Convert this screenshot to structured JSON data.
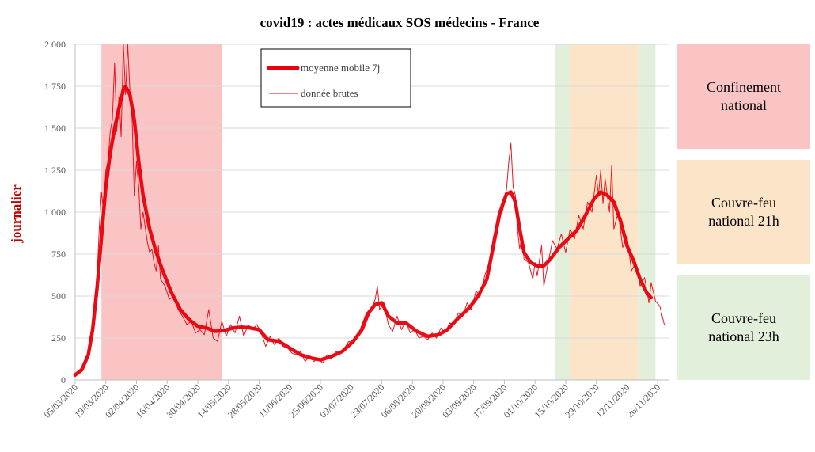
{
  "chart_data": {
    "type": "line",
    "title": "covid19 : actes médicaux SOS médecins - France",
    "ylabel": "journalier",
    "ylim": [
      0,
      2000
    ],
    "xlim": [
      "2020-03-05",
      "2020-12-01"
    ],
    "y_ticks": [
      "0",
      "250",
      "500",
      "750",
      "1 000",
      "1 250",
      "1 500",
      "1 750",
      "2 000"
    ],
    "y_tick_values": [
      0,
      250,
      500,
      750,
      1000,
      1250,
      1500,
      1750,
      2000
    ],
    "x_ticks": [
      "05/03/2020",
      "19/03/2020",
      "02/04/2020",
      "16/04/2020",
      "30/04/2020",
      "14/05/2020",
      "28/05/2020",
      "11/06/2020",
      "25/06/2020",
      "09/07/2020",
      "23/07/2020",
      "06/08/2020",
      "20/08/2020",
      "03/09/2020",
      "17/09/2020",
      "01/10/2020",
      "15/10/2020",
      "29/10/2020",
      "12/11/2020",
      "26/11/2020"
    ],
    "x_tick_dates": [
      "2020-03-05",
      "2020-03-19",
      "2020-04-02",
      "2020-04-16",
      "2020-04-30",
      "2020-05-14",
      "2020-05-28",
      "2020-06-11",
      "2020-06-25",
      "2020-07-09",
      "2020-07-23",
      "2020-08-06",
      "2020-08-20",
      "2020-09-03",
      "2020-09-17",
      "2020-10-01",
      "2020-10-15",
      "2020-10-29",
      "2020-11-12",
      "2020-11-26"
    ],
    "grid": true,
    "legend": {
      "position": "top-center"
    },
    "series": [
      {
        "name": "moyenne mobile 7j",
        "color": "#e8000b",
        "points": [
          [
            "2020-03-05",
            30
          ],
          [
            "2020-03-08",
            60
          ],
          [
            "2020-03-11",
            150
          ],
          [
            "2020-03-13",
            300
          ],
          [
            "2020-03-15",
            550
          ],
          [
            "2020-03-17",
            850
          ],
          [
            "2020-03-19",
            1150
          ],
          [
            "2020-03-21",
            1350
          ],
          [
            "2020-03-23",
            1500
          ],
          [
            "2020-03-25",
            1620
          ],
          [
            "2020-03-27",
            1730
          ],
          [
            "2020-03-28",
            1750
          ],
          [
            "2020-03-30",
            1700
          ],
          [
            "2020-04-01",
            1550
          ],
          [
            "2020-04-03",
            1300
          ],
          [
            "2020-04-05",
            1100
          ],
          [
            "2020-04-08",
            900
          ],
          [
            "2020-04-11",
            760
          ],
          [
            "2020-04-14",
            650
          ],
          [
            "2020-04-18",
            520
          ],
          [
            "2020-04-22",
            420
          ],
          [
            "2020-04-26",
            360
          ],
          [
            "2020-04-30",
            320
          ],
          [
            "2020-05-04",
            310
          ],
          [
            "2020-05-08",
            290
          ],
          [
            "2020-05-12",
            295
          ],
          [
            "2020-05-16",
            310
          ],
          [
            "2020-05-20",
            315
          ],
          [
            "2020-05-24",
            310
          ],
          [
            "2020-05-28",
            300
          ],
          [
            "2020-06-01",
            240
          ],
          [
            "2020-06-06",
            230
          ],
          [
            "2020-06-11",
            190
          ],
          [
            "2020-06-16",
            150
          ],
          [
            "2020-06-21",
            130
          ],
          [
            "2020-06-25",
            120
          ],
          [
            "2020-06-30",
            140
          ],
          [
            "2020-07-05",
            170
          ],
          [
            "2020-07-10",
            230
          ],
          [
            "2020-07-14",
            300
          ],
          [
            "2020-07-17",
            400
          ],
          [
            "2020-07-20",
            450
          ],
          [
            "2020-07-23",
            460
          ],
          [
            "2020-07-26",
            380
          ],
          [
            "2020-07-30",
            340
          ],
          [
            "2020-08-03",
            340
          ],
          [
            "2020-08-08",
            290
          ],
          [
            "2020-08-13",
            260
          ],
          [
            "2020-08-18",
            270
          ],
          [
            "2020-08-22",
            300
          ],
          [
            "2020-08-27",
            370
          ],
          [
            "2020-09-01",
            430
          ],
          [
            "2020-09-05",
            500
          ],
          [
            "2020-09-09",
            600
          ],
          [
            "2020-09-12",
            800
          ],
          [
            "2020-09-15",
            1000
          ],
          [
            "2020-09-18",
            1110
          ],
          [
            "2020-09-20",
            1120
          ],
          [
            "2020-09-22",
            1060
          ],
          [
            "2020-09-24",
            900
          ],
          [
            "2020-09-26",
            760
          ],
          [
            "2020-09-29",
            700
          ],
          [
            "2020-10-02",
            680
          ],
          [
            "2020-10-05",
            680
          ],
          [
            "2020-10-08",
            720
          ],
          [
            "2020-10-12",
            790
          ],
          [
            "2020-10-16",
            840
          ],
          [
            "2020-10-20",
            890
          ],
          [
            "2020-10-24",
            980
          ],
          [
            "2020-10-28",
            1080
          ],
          [
            "2020-10-31",
            1120
          ],
          [
            "2020-11-03",
            1100
          ],
          [
            "2020-11-06",
            1060
          ],
          [
            "2020-11-09",
            950
          ],
          [
            "2020-11-12",
            800
          ],
          [
            "2020-11-15",
            710
          ],
          [
            "2020-11-18",
            600
          ],
          [
            "2020-11-21",
            520
          ],
          [
            "2020-11-23",
            490
          ]
        ]
      },
      {
        "name": "donnée brutes",
        "color": "#e8000b",
        "points": [
          [
            "2020-03-05",
            20
          ],
          [
            "2020-03-07",
            60
          ],
          [
            "2020-03-09",
            90
          ],
          [
            "2020-03-11",
            160
          ],
          [
            "2020-03-13",
            320
          ],
          [
            "2020-03-15",
            620
          ],
          [
            "2020-03-16",
            900
          ],
          [
            "2020-03-17",
            1120
          ],
          [
            "2020-03-18",
            1000
          ],
          [
            "2020-03-19",
            1250
          ],
          [
            "2020-03-20",
            1300
          ],
          [
            "2020-03-21",
            1480
          ],
          [
            "2020-03-22",
            1550
          ],
          [
            "2020-03-23",
            1890
          ],
          [
            "2020-03-24",
            1480
          ],
          [
            "2020-03-25",
            1700
          ],
          [
            "2020-03-26",
            1450
          ],
          [
            "2020-03-27",
            2000
          ],
          [
            "2020-03-28",
            1700
          ],
          [
            "2020-03-29",
            2000
          ],
          [
            "2020-03-30",
            1720
          ],
          [
            "2020-03-31",
            1550
          ],
          [
            "2020-04-01",
            1100
          ],
          [
            "2020-04-02",
            1300
          ],
          [
            "2020-04-03",
            1150
          ],
          [
            "2020-04-04",
            900
          ],
          [
            "2020-04-05",
            1000
          ],
          [
            "2020-04-07",
            820
          ],
          [
            "2020-04-08",
            760
          ],
          [
            "2020-04-09",
            780
          ],
          [
            "2020-04-10",
            700
          ],
          [
            "2020-04-11",
            650
          ],
          [
            "2020-04-12",
            800
          ],
          [
            "2020-04-13",
            600
          ],
          [
            "2020-04-15",
            560
          ],
          [
            "2020-04-17",
            480
          ],
          [
            "2020-04-19",
            500
          ],
          [
            "2020-04-21",
            420
          ],
          [
            "2020-04-23",
            380
          ],
          [
            "2020-04-25",
            330
          ],
          [
            "2020-04-27",
            350
          ],
          [
            "2020-04-29",
            280
          ],
          [
            "2020-05-01",
            300
          ],
          [
            "2020-05-03",
            270
          ],
          [
            "2020-05-05",
            420
          ],
          [
            "2020-05-07",
            250
          ],
          [
            "2020-05-09",
            230
          ],
          [
            "2020-05-11",
            350
          ],
          [
            "2020-05-13",
            260
          ],
          [
            "2020-05-15",
            330
          ],
          [
            "2020-05-17",
            280
          ],
          [
            "2020-05-19",
            380
          ],
          [
            "2020-05-21",
            260
          ],
          [
            "2020-05-23",
            330
          ],
          [
            "2020-05-25",
            300
          ],
          [
            "2020-05-27",
            330
          ],
          [
            "2020-05-29",
            280
          ],
          [
            "2020-05-31",
            200
          ],
          [
            "2020-06-02",
            260
          ],
          [
            "2020-06-04",
            210
          ],
          [
            "2020-06-06",
            250
          ],
          [
            "2020-06-08",
            200
          ],
          [
            "2020-06-10",
            190
          ],
          [
            "2020-06-12",
            160
          ],
          [
            "2020-06-14",
            150
          ],
          [
            "2020-06-16",
            170
          ],
          [
            "2020-06-18",
            110
          ],
          [
            "2020-06-20",
            140
          ],
          [
            "2020-06-22",
            110
          ],
          [
            "2020-06-24",
            130
          ],
          [
            "2020-06-26",
            100
          ],
          [
            "2020-06-28",
            150
          ],
          [
            "2020-06-30",
            130
          ],
          [
            "2020-07-02",
            170
          ],
          [
            "2020-07-04",
            160
          ],
          [
            "2020-07-06",
            190
          ],
          [
            "2020-07-08",
            230
          ],
          [
            "2020-07-10",
            220
          ],
          [
            "2020-07-12",
            260
          ],
          [
            "2020-07-14",
            330
          ],
          [
            "2020-07-16",
            400
          ],
          [
            "2020-07-18",
            420
          ],
          [
            "2020-07-20",
            480
          ],
          [
            "2020-07-21",
            560
          ],
          [
            "2020-07-22",
            420
          ],
          [
            "2020-07-24",
            460
          ],
          [
            "2020-07-26",
            330
          ],
          [
            "2020-07-28",
            290
          ],
          [
            "2020-07-30",
            380
          ],
          [
            "2020-08-01",
            300
          ],
          [
            "2020-08-03",
            350
          ],
          [
            "2020-08-05",
            280
          ],
          [
            "2020-08-07",
            300
          ],
          [
            "2020-08-09",
            250
          ],
          [
            "2020-08-11",
            260
          ],
          [
            "2020-08-13",
            240
          ],
          [
            "2020-08-15",
            280
          ],
          [
            "2020-08-17",
            250
          ],
          [
            "2020-08-19",
            310
          ],
          [
            "2020-08-21",
            280
          ],
          [
            "2020-08-23",
            340
          ],
          [
            "2020-08-25",
            330
          ],
          [
            "2020-08-27",
            400
          ],
          [
            "2020-08-29",
            380
          ],
          [
            "2020-08-31",
            460
          ],
          [
            "2020-09-02",
            420
          ],
          [
            "2020-09-04",
            530
          ],
          [
            "2020-09-06",
            500
          ],
          [
            "2020-09-08",
            620
          ],
          [
            "2020-09-10",
            700
          ],
          [
            "2020-09-12",
            850
          ],
          [
            "2020-09-14",
            980
          ],
          [
            "2020-09-16",
            1000
          ],
          [
            "2020-09-17",
            1050
          ],
          [
            "2020-09-18",
            1140
          ],
          [
            "2020-09-19",
            1300
          ],
          [
            "2020-09-20",
            1410
          ],
          [
            "2020-09-21",
            1150
          ],
          [
            "2020-09-22",
            1100
          ],
          [
            "2020-09-23",
            900
          ],
          [
            "2020-09-24",
            780
          ],
          [
            "2020-09-25",
            860
          ],
          [
            "2020-09-26",
            720
          ],
          [
            "2020-09-28",
            700
          ],
          [
            "2020-09-30",
            600
          ],
          [
            "2020-10-01",
            700
          ],
          [
            "2020-10-02",
            620
          ],
          [
            "2020-10-04",
            800
          ],
          [
            "2020-10-05",
            560
          ],
          [
            "2020-10-07",
            700
          ],
          [
            "2020-10-09",
            830
          ],
          [
            "2020-10-11",
            780
          ],
          [
            "2020-10-13",
            870
          ],
          [
            "2020-10-15",
            760
          ],
          [
            "2020-10-17",
            900
          ],
          [
            "2020-10-19",
            840
          ],
          [
            "2020-10-21",
            980
          ],
          [
            "2020-10-23",
            900
          ],
          [
            "2020-10-25",
            1060
          ],
          [
            "2020-10-27",
            1000
          ],
          [
            "2020-10-29",
            1220
          ],
          [
            "2020-10-30",
            1100
          ],
          [
            "2020-10-31",
            1250
          ],
          [
            "2020-11-01",
            1050
          ],
          [
            "2020-11-02",
            1200
          ],
          [
            "2020-11-04",
            1000
          ],
          [
            "2020-11-05",
            1280
          ],
          [
            "2020-11-06",
            900
          ],
          [
            "2020-11-08",
            1000
          ],
          [
            "2020-11-10",
            790
          ],
          [
            "2020-11-12",
            860
          ],
          [
            "2020-11-14",
            650
          ],
          [
            "2020-11-16",
            700
          ],
          [
            "2020-11-18",
            560
          ],
          [
            "2020-11-20",
            610
          ],
          [
            "2020-11-22",
            460
          ],
          [
            "2020-11-23",
            580
          ],
          [
            "2020-11-25",
            470
          ],
          [
            "2020-11-27",
            440
          ],
          [
            "2020-11-29",
            330
          ]
        ]
      }
    ],
    "periods": [
      {
        "name": "Confinement national",
        "start": "2020-03-17",
        "end": "2020-05-11",
        "color": "#fbc4c4"
      },
      {
        "name": "Couvre-feu national 23h",
        "start": "2020-10-10",
        "end": "2020-10-17",
        "color": "#e2efda"
      },
      {
        "name": "Couvre-feu national 21h",
        "start": "2020-10-17",
        "end": "2020-11-17",
        "color": "#fce4c8"
      },
      {
        "name": "Couvre-feu national 23h",
        "start": "2020-11-17",
        "end": "2020-11-25",
        "color": "#e2efda"
      }
    ]
  },
  "side_legend": [
    {
      "label": "Confinement\nnational",
      "color": "#fbc4c4"
    },
    {
      "label": "Couvre-feu\nnational 21h",
      "color": "#fce4c8"
    },
    {
      "label": "Couvre-feu\nnational 23h",
      "color": "#e2efda"
    }
  ]
}
